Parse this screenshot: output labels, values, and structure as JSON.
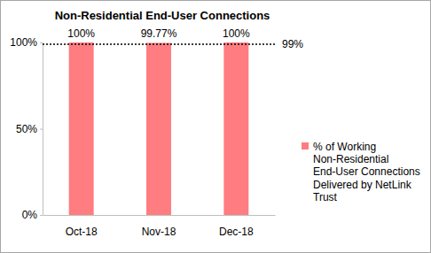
{
  "chart_data": {
    "type": "bar",
    "title": "Non-Residential End-User Connections",
    "categories": [
      "Oct-18",
      "Nov-18",
      "Dec-18"
    ],
    "series": [
      {
        "name": "% of Working Non-Residential End-User Connections Delivered by NetLink Trust",
        "color": "#ff7c80",
        "values": [
          100,
          99.77,
          100
        ],
        "value_labels": [
          "100%",
          "99.77%",
          "100%"
        ]
      }
    ],
    "ylim": [
      0,
      100
    ],
    "yticks": [
      {
        "value": 0,
        "label": "0%"
      },
      {
        "value": 50,
        "label": "50%"
      },
      {
        "value": 100,
        "label": "100%"
      }
    ],
    "annotations": [
      {
        "value": 99,
        "label": "99%",
        "line_style": "dotted"
      }
    ],
    "data_labels": true,
    "grid": false,
    "legend": "right"
  }
}
